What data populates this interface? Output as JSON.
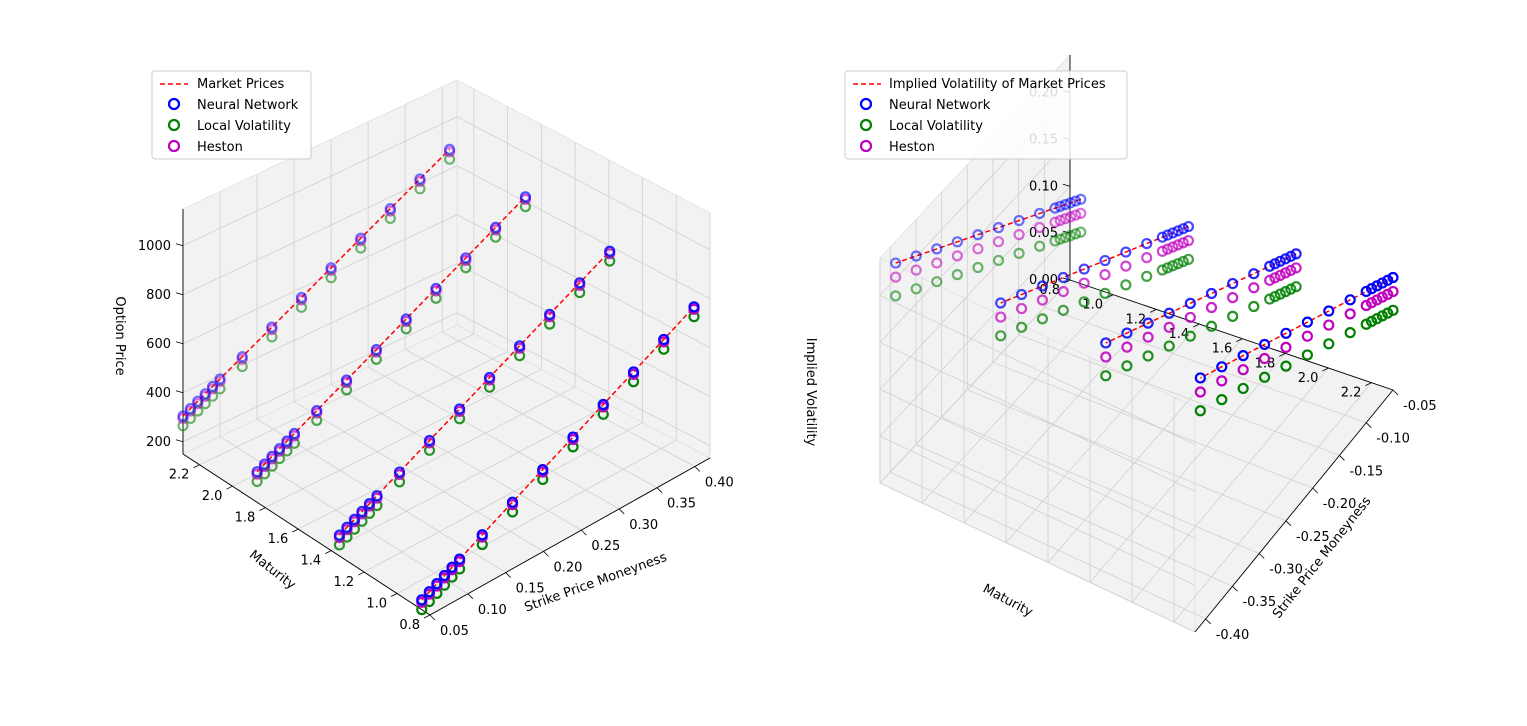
{
  "colors": {
    "market": "#ff0000",
    "neural_network": "#0000ff",
    "local_volatility": "#008000",
    "heston": "#bf00bf",
    "pane": "#f2f2f2",
    "grid": "#d0d0d0"
  },
  "chart_data": [
    {
      "type": "scatter",
      "subtype": "3d",
      "xlabel": "Strike Price Moneyness",
      "ylabel": "Maturity",
      "zlabel": "Option Price",
      "xlim": [
        0.05,
        0.42
      ],
      "ylim": [
        0.8,
        2.3
      ],
      "zlim": [
        150,
        1150
      ],
      "x_ticks": [
        "0.05",
        "0.10",
        "0.15",
        "0.20",
        "0.25",
        "0.30",
        "0.35",
        "0.40"
      ],
      "y_ticks": [
        "0.8",
        "1.0",
        "1.2",
        "1.4",
        "1.6",
        "1.8",
        "2.0",
        "2.2"
      ],
      "z_ticks": [
        "200",
        "400",
        "600",
        "800",
        "1000"
      ],
      "legend_position": "top-left",
      "series": [
        {
          "name": "Market Prices",
          "style": "dashed-line"
        },
        {
          "name": "Neural Network",
          "style": "circle"
        },
        {
          "name": "Local Volatility",
          "style": "circle"
        },
        {
          "name": "Heston",
          "style": "circle"
        }
      ],
      "maturities": [
        0.85,
        1.35,
        1.85,
        2.3
      ],
      "moneyness": [
        0.05,
        0.06,
        0.07,
        0.08,
        0.09,
        0.1,
        0.13,
        0.17,
        0.21,
        0.25,
        0.29,
        0.33,
        0.37,
        0.41
      ],
      "market_prices": [
        [
          190,
          206,
          222,
          238,
          254,
          270,
          318,
          382,
          446,
          510,
          574,
          638,
          702,
          766
        ],
        [
          235,
          251,
          267,
          283,
          299,
          315,
          363,
          427,
          491,
          555,
          619,
          683,
          747,
          811
        ],
        [
          275,
          291,
          307,
          323,
          339,
          355,
          403,
          467,
          531,
          595,
          659,
          723,
          787,
          851
        ],
        [
          305,
          321,
          337,
          353,
          369,
          385,
          433,
          497,
          561,
          625,
          689,
          753,
          817,
          881
        ]
      ],
      "offsets": {
        "neural_network": 0,
        "local_volatility": -40,
        "heston": -10
      }
    },
    {
      "type": "scatter",
      "subtype": "3d",
      "xlabel": "Strike Price Moneyness",
      "ylabel": "Maturity",
      "zlabel": "Implied Volatility",
      "xlim": [
        -0.42,
        -0.05
      ],
      "ylim": [
        0.8,
        2.3
      ],
      "zlim": [
        0.0,
        0.24
      ],
      "x_ticks": [
        "-0.40",
        "-0.35",
        "-0.30",
        "-0.25",
        "-0.20",
        "-0.15",
        "-0.10",
        "-0.05"
      ],
      "y_ticks": [
        "0.8",
        "1.0",
        "1.2",
        "1.4",
        "1.6",
        "1.8",
        "2.0",
        "2.2"
      ],
      "z_ticks": [
        "0.00",
        "0.05",
        "0.10",
        "0.15",
        "0.20"
      ],
      "legend_position": "top-left",
      "series": [
        {
          "name": "Implied Volatility of Market Prices",
          "style": "dashed-line"
        },
        {
          "name": "Neural Network",
          "style": "circle"
        },
        {
          "name": "Local Volatility",
          "style": "circle"
        },
        {
          "name": "Heston",
          "style": "circle"
        }
      ],
      "maturities": [
        0.85,
        1.35,
        1.85,
        2.3
      ],
      "moneyness": [
        -0.05,
        -0.06,
        -0.07,
        -0.08,
        -0.09,
        -0.1,
        -0.13,
        -0.17,
        -0.21,
        -0.25,
        -0.29,
        -0.33,
        -0.37,
        -0.41
      ],
      "market_iv": [
        [
          0.09,
          0.094,
          0.098,
          0.102,
          0.106,
          0.11,
          0.122,
          0.138,
          0.154,
          0.17,
          0.186,
          0.202,
          0.218,
          0.234
        ],
        [
          0.1,
          0.104,
          0.108,
          0.112,
          0.116,
          0.12,
          0.132,
          0.148,
          0.164,
          0.18,
          0.196,
          0.212,
          0.228,
          0.244
        ],
        [
          0.11,
          0.114,
          0.118,
          0.122,
          0.126,
          0.13,
          0.142,
          0.158,
          0.174,
          0.19,
          0.206,
          0.222,
          0.238,
          0.254
        ],
        [
          0.12,
          0.124,
          0.128,
          0.132,
          0.136,
          0.14,
          0.152,
          0.168,
          0.184,
          0.2,
          0.216,
          0.232,
          0.248,
          0.264
        ]
      ],
      "offsets": {
        "neural_network": 0,
        "local_volatility": -0.035,
        "heston": -0.015
      }
    }
  ]
}
